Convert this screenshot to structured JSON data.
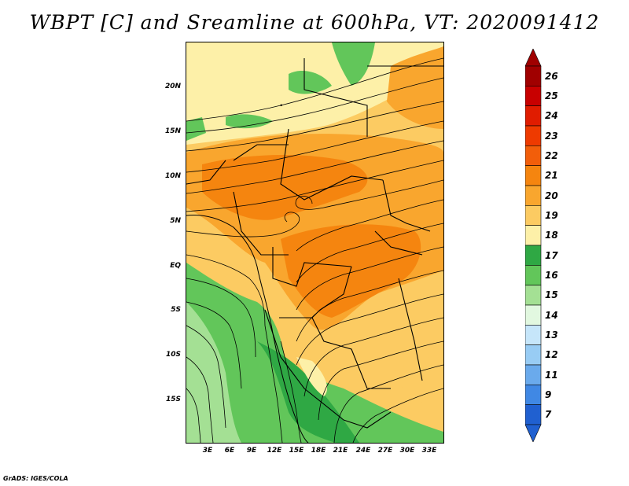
{
  "title": "WBPT [C] and Sreamline at 600hPa, VT: 2020091412",
  "footer": "GrADS: IGES/COLA",
  "map": {
    "y_axis_labels": [
      "20N",
      "15N",
      "10N",
      "5N",
      "EQ",
      "5S",
      "10S",
      "15S"
    ],
    "x_axis_labels": [
      "3E",
      "6E",
      "9E",
      "12E",
      "15E",
      "18E",
      "21E",
      "24E",
      "27E",
      "30E",
      "33E"
    ]
  },
  "colorbar": {
    "labels": [
      "26",
      "25",
      "24",
      "23",
      "22",
      "21",
      "20",
      "19",
      "18",
      "17",
      "16",
      "15",
      "14",
      "13",
      "12",
      "11",
      "9",
      "7"
    ],
    "colors": [
      "#a00000",
      "#c80000",
      "#e01c00",
      "#ee3a00",
      "#f25e0a",
      "#f5850f",
      "#f9a62e",
      "#fccb62",
      "#fdf0a8",
      "#2fa844",
      "#62c65a",
      "#a4e094",
      "#e2f8e0",
      "#c6e6fa",
      "#98ccf4",
      "#6aaaec",
      "#4088e4",
      "#2060d0"
    ]
  }
}
